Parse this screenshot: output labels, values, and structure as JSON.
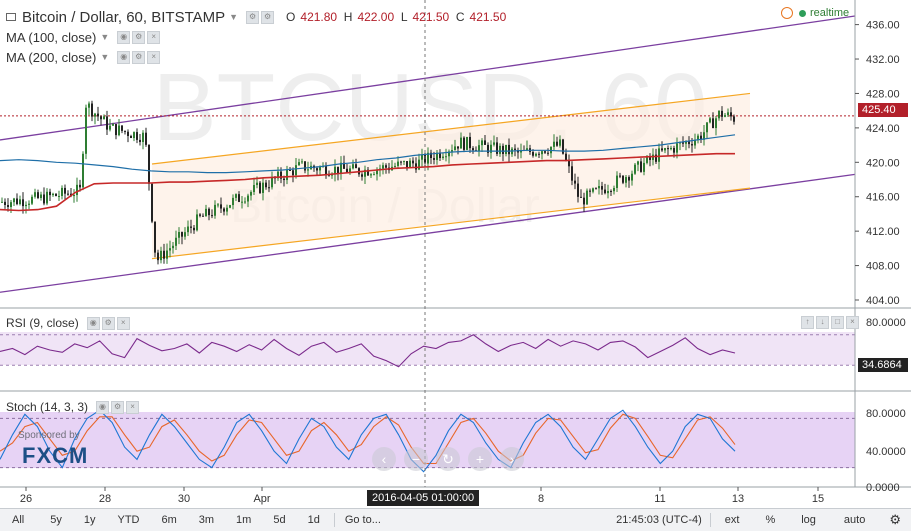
{
  "header": {
    "title": "Bitcoin / Dollar, 60, BITSTAMP",
    "ohlc": [
      {
        "k": "O",
        "v": "421.80"
      },
      {
        "k": "H",
        "v": "422.00"
      },
      {
        "k": "L",
        "v": "421.50"
      },
      {
        "k": "C",
        "v": "421.50"
      }
    ],
    "realtime_label": "realtime",
    "ma100_label": "MA (100, close)",
    "ma200_label": "MA (200, close)"
  },
  "watermark": {
    "symbol": "BTCUSD, 60",
    "name": "Bitcoin / Dollar"
  },
  "sponsor": {
    "line1": "Sponsored by",
    "brand": "FXCM"
  },
  "rsi_label": "RSI (9, close)",
  "stoch_label": "Stoch (14, 3, 3)",
  "crosshair_date": "2016-04-05 01:00:00",
  "colors": {
    "up": "#2e7d32",
    "down": "#222222",
    "ma100": "#1f6fa8",
    "ma200": "#c62828",
    "channel_inner": "#f5a623",
    "channel_outer": "#7b3fa0",
    "rsi": "#7b2a8c",
    "stoch_k": "#1f77d4",
    "stoch_d": "#e8662a",
    "price_tag": "#b2202a",
    "indicator_tag": "#222222"
  },
  "chart_data": [
    {
      "type": "candlestick",
      "title": "Bitcoin / Dollar, 60, BITSTAMP",
      "ylim": [
        404,
        437
      ],
      "yticks": [
        "436.00",
        "432.00",
        "428.00",
        "424.00",
        "420.00",
        "416.00",
        "412.00",
        "408.00",
        "404.00"
      ],
      "xticks": [
        "26",
        "28",
        "30",
        "Apr",
        "8",
        "11",
        "13",
        "15"
      ],
      "last_price": "425.40",
      "series": [
        {
          "name": "MA (100, close)",
          "values": [
            420.2,
            420.3,
            420.2,
            420.0,
            419.9,
            419.7,
            419.5,
            419.2,
            419.0,
            418.9,
            418.9,
            418.8,
            418.8,
            418.9,
            419.0,
            419.1,
            419.3,
            419.5,
            419.8,
            420.0,
            420.3,
            420.5,
            420.8,
            421.0,
            421.2,
            421.3,
            421.3,
            421.3,
            421.4,
            421.4,
            421.3,
            421.3,
            421.4,
            421.6,
            421.8,
            422.0,
            422.3,
            422.6,
            422.9,
            423.2
          ]
        },
        {
          "name": "MA (200, close)",
          "values": [
            414.5,
            414.4,
            414.5,
            414.9,
            416.5,
            417.5,
            417.6,
            417.6,
            417.6,
            417.7,
            417.7,
            417.8,
            417.9,
            418.0,
            418.2,
            418.3,
            418.4,
            418.5,
            418.7,
            418.9,
            419.1,
            419.3,
            419.4,
            419.5,
            419.7,
            419.8,
            419.9,
            420.0,
            420.1,
            420.2,
            420.2,
            420.3,
            420.4,
            420.5,
            420.6,
            420.7,
            420.8,
            420.9,
            421.0,
            421.0
          ]
        }
      ]
    },
    {
      "type": "line",
      "title": "RSI (9, close)",
      "ylim": [
        0,
        100
      ],
      "yticks": [
        "80.0000"
      ],
      "last_value": "34.6864",
      "series": [
        {
          "name": "RSI (9, close)",
          "values": [
            48,
            52,
            44,
            55,
            50,
            47,
            58,
            53,
            62,
            45,
            40,
            65,
            56,
            49,
            52,
            58,
            46,
            60,
            55,
            48,
            57,
            50,
            64,
            52,
            43,
            55,
            60,
            47,
            52,
            58,
            42,
            36,
            28,
            45,
            55,
            52,
            60,
            62,
            70,
            58,
            48,
            56,
            60,
            52,
            64,
            55,
            62,
            58,
            50,
            60,
            62,
            54,
            40,
            48,
            56,
            66,
            52,
            44,
            50,
            46
          ]
        }
      ]
    },
    {
      "type": "line",
      "title": "Stoch (14, 3, 3)",
      "ylim": [
        0,
        100
      ],
      "yticks": [
        "80.0000",
        "40.0000",
        "0.0000"
      ],
      "series": [
        {
          "name": "%K",
          "values": [
            30,
            60,
            85,
            70,
            40,
            20,
            55,
            80,
            90,
            75,
            45,
            30,
            60,
            85,
            70,
            50,
            30,
            20,
            45,
            75,
            85,
            65,
            40,
            25,
            55,
            80,
            70,
            45,
            30,
            60,
            80,
            85,
            60,
            30,
            15,
            35,
            65,
            85,
            75,
            50,
            30,
            20,
            50,
            75,
            85,
            70,
            45,
            30,
            55,
            80,
            90,
            70,
            45,
            25,
            40,
            70,
            85,
            80,
            55,
            40
          ]
        },
        {
          "name": "%D",
          "values": [
            40,
            50,
            70,
            75,
            55,
            35,
            40,
            65,
            82,
            82,
            60,
            40,
            45,
            70,
            78,
            60,
            40,
            28,
            35,
            60,
            78,
            75,
            55,
            35,
            40,
            65,
            75,
            60,
            40,
            48,
            70,
            82,
            72,
            45,
            25,
            25,
            50,
            75,
            80,
            62,
            40,
            28,
            35,
            62,
            80,
            78,
            58,
            38,
            42,
            68,
            85,
            80,
            58,
            35,
            32,
            55,
            78,
            82,
            68,
            48
          ]
        }
      ]
    }
  ],
  "toolbar": {
    "ranges": [
      "All",
      "5y",
      "1y",
      "YTD",
      "6m",
      "3m",
      "1m",
      "5d",
      "1d"
    ],
    "goto": "Go to...",
    "time": "21:45:03 (UTC-4)",
    "ext": "ext",
    "percent": "%",
    "log": "log",
    "auto": "auto"
  }
}
